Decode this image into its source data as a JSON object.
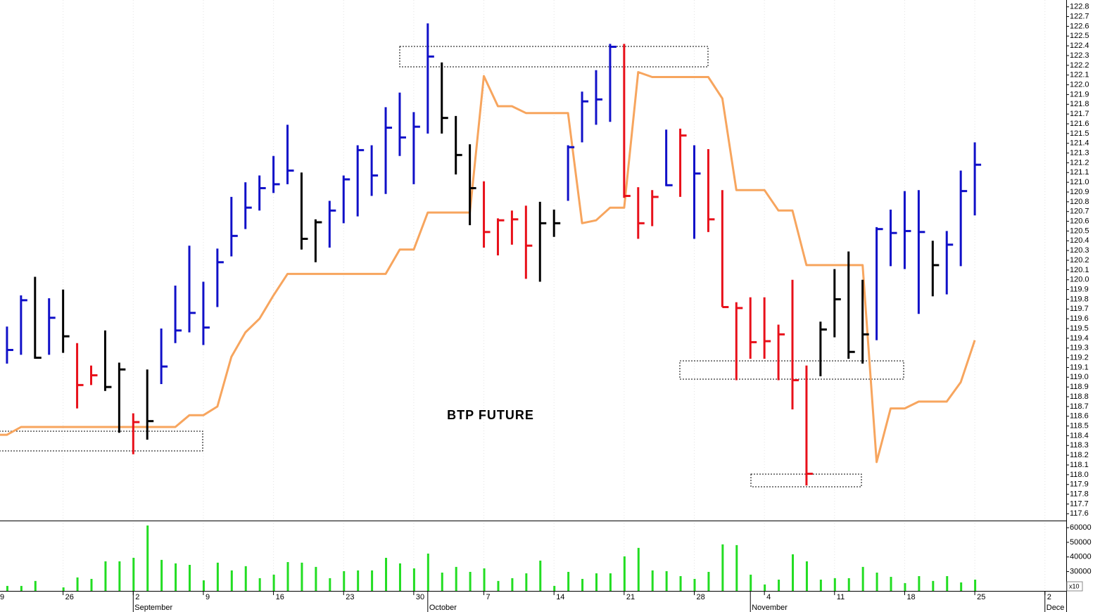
{
  "chart_data": {
    "type": "ohlc",
    "title": "BTP FUTURE",
    "categories": [
      "9",
      null,
      null,
      null,
      null,
      "26",
      null,
      null,
      null,
      null,
      "2",
      null,
      null,
      null,
      null,
      "9",
      null,
      null,
      null,
      null,
      "16",
      null,
      null,
      null,
      null,
      "23",
      null,
      null,
      null,
      null,
      "30",
      null,
      null,
      null,
      null,
      "7",
      null,
      null,
      null,
      null,
      "14",
      null,
      null,
      null,
      null,
      "21",
      null,
      null,
      null,
      null,
      "28",
      null,
      null,
      null,
      null,
      "4",
      null,
      null,
      null,
      null,
      "11",
      null,
      null,
      null,
      null,
      "18",
      null,
      null,
      null,
      null,
      "25",
      null,
      null,
      null,
      null,
      "2"
    ],
    "months": [
      null,
      null,
      null,
      null,
      null,
      null,
      null,
      null,
      null,
      null,
      "September",
      null,
      null,
      null,
      null,
      null,
      null,
      null,
      null,
      null,
      null,
      null,
      null,
      null,
      null,
      null,
      null,
      null,
      null,
      null,
      null,
      "October",
      null,
      null,
      null,
      null,
      null,
      null,
      null,
      null,
      null,
      null,
      null,
      null,
      null,
      null,
      null,
      null,
      null,
      null,
      null,
      null,
      null,
      null,
      "November",
      null,
      null,
      null,
      null,
      null,
      null,
      null,
      null,
      null,
      null,
      null,
      null,
      null,
      null,
      null,
      null,
      null,
      null,
      null,
      null,
      "Dece"
    ],
    "palette": {
      "up": "#1010c8",
      "down": "#e8101a",
      "neutral": "#000000"
    },
    "trend": [
      null,
      "up",
      "up",
      "neutral",
      "up",
      "neutral",
      "down",
      "down",
      "neutral",
      "neutral",
      "down",
      "neutral",
      "up",
      "up",
      "up",
      "up",
      "up",
      "up",
      "up",
      "up",
      "up",
      "up",
      "neutral",
      "neutral",
      "up",
      "up",
      "up",
      "up",
      "up",
      "up",
      "up",
      "up",
      "neutral",
      "neutral",
      "neutral",
      "down",
      "down",
      "down",
      "down",
      "neutral",
      "neutral",
      "up",
      "up",
      "up",
      "up",
      "down",
      "down",
      "down",
      "up",
      "down",
      "up",
      "down",
      "down",
      "down",
      "down",
      "down",
      "down",
      "down",
      "down",
      "neutral",
      "neutral",
      "neutral",
      "neutral",
      "up",
      "up",
      "up",
      "up",
      "neutral",
      "up",
      "up",
      "up",
      null,
      null,
      null,
      null,
      null
    ],
    "high": [
      null,
      119.52,
      119.84,
      120.03,
      119.81,
      119.9,
      119.35,
      119.12,
      119.48,
      119.15,
      118.63,
      119.08,
      119.5,
      119.94,
      120.35,
      119.98,
      120.32,
      120.85,
      121.0,
      121.07,
      121.27,
      121.59,
      121.1,
      120.62,
      120.81,
      121.07,
      121.38,
      121.38,
      121.77,
      121.92,
      121.72,
      122.63,
      122.23,
      121.68,
      121.39,
      121.01,
      120.63,
      120.71,
      120.76,
      120.8,
      120.72,
      121.38,
      121.93,
      122.15,
      122.42,
      122.42,
      120.95,
      120.92,
      121.54,
      121.55,
      121.38,
      121.34,
      120.92,
      119.77,
      119.82,
      119.82,
      119.54,
      120.0,
      119.12,
      119.57,
      120.11,
      120.29,
      120.0,
      120.54,
      120.72,
      120.91,
      120.92,
      120.4,
      120.5,
      121.12,
      121.41,
      null,
      null,
      null,
      null,
      null
    ],
    "low": [
      null,
      119.14,
      119.23,
      119.19,
      119.23,
      119.25,
      118.68,
      118.92,
      118.86,
      118.43,
      118.21,
      118.36,
      118.93,
      119.35,
      119.46,
      119.33,
      119.72,
      120.24,
      120.52,
      120.71,
      120.89,
      120.98,
      120.31,
      120.18,
      120.33,
      120.58,
      120.65,
      120.86,
      120.88,
      121.27,
      120.98,
      121.5,
      121.5,
      121.08,
      120.56,
      120.33,
      120.25,
      120.36,
      120.01,
      119.98,
      120.44,
      120.81,
      121.41,
      121.59,
      121.62,
      120.84,
      120.42,
      120.55,
      120.96,
      120.85,
      120.42,
      120.49,
      119.72,
      118.97,
      119.19,
      119.19,
      118.97,
      118.67,
      117.89,
      119.01,
      119.41,
      119.19,
      119.14,
      119.38,
      120.14,
      120.11,
      119.65,
      119.83,
      119.85,
      120.14,
      120.66,
      null,
      null,
      null,
      null,
      null
    ],
    "close": [
      null,
      119.28,
      119.79,
      119.2,
      119.61,
      119.42,
      118.92,
      119.02,
      118.9,
      119.08,
      118.54,
      118.55,
      119.11,
      119.48,
      119.66,
      119.51,
      120.18,
      120.45,
      120.74,
      120.94,
      120.98,
      121.12,
      120.42,
      120.59,
      120.71,
      121.03,
      121.33,
      121.07,
      121.56,
      121.46,
      121.57,
      122.29,
      121.66,
      121.28,
      120.94,
      120.49,
      120.61,
      120.62,
      120.35,
      120.58,
      120.58,
      121.36,
      121.83,
      121.85,
      122.39,
      120.86,
      120.58,
      120.85,
      120.97,
      121.48,
      121.09,
      120.62,
      119.72,
      119.71,
      119.36,
      119.37,
      119.44,
      118.97,
      118.01,
      119.49,
      119.8,
      119.26,
      119.44,
      120.52,
      120.48,
      120.5,
      120.49,
      120.15,
      120.36,
      120.91,
      121.18,
      null,
      null,
      null,
      null,
      null
    ],
    "line": {
      "color": "#f7a55e",
      "values": [
        118.41,
        118.41,
        118.49,
        118.49,
        118.49,
        118.49,
        118.49,
        118.49,
        118.49,
        118.49,
        118.49,
        118.49,
        118.49,
        118.49,
        118.61,
        118.61,
        118.7,
        119.21,
        119.46,
        119.6,
        119.84,
        120.06,
        120.06,
        120.06,
        120.06,
        120.06,
        120.06,
        120.06,
        120.06,
        120.31,
        120.31,
        120.69,
        120.69,
        120.69,
        120.69,
        122.09,
        121.78,
        121.78,
        121.71,
        121.71,
        121.71,
        121.71,
        120.58,
        120.61,
        120.74,
        120.74,
        122.13,
        122.08,
        122.08,
        122.08,
        122.08,
        122.08,
        121.86,
        120.92,
        120.92,
        120.92,
        120.71,
        120.71,
        120.15,
        120.15,
        120.15,
        120.15,
        120.15,
        118.13,
        118.68,
        118.68,
        118.75,
        118.75,
        118.75,
        118.95,
        119.38,
        null,
        null,
        null,
        null,
        null
      ]
    },
    "ylim": [
      117.53,
      122.87
    ],
    "yticks": [
      117.6,
      117.7,
      117.8,
      117.9,
      {
        "value": 118,
        "label": "118.0"
      },
      118.1,
      118.2,
      118.3,
      118.4,
      118.5,
      118.6,
      118.7,
      118.8,
      118.9,
      {
        "value": 119,
        "label": "119.0"
      },
      119.1,
      119.2,
      119.3,
      119.4,
      119.5,
      119.6,
      119.7,
      119.8,
      119.9,
      {
        "value": 120,
        "label": "120.0"
      },
      120.1,
      120.2,
      120.3,
      120.4,
      120.5,
      120.6,
      120.7,
      120.8,
      120.9,
      {
        "value": 121,
        "label": "121.0"
      },
      121.1,
      121.2,
      121.3,
      121.4,
      121.5,
      121.6,
      121.7,
      121.8,
      121.9,
      {
        "value": 122,
        "label": "122.0"
      },
      122.1,
      122.2,
      122.3,
      122.4,
      122.5,
      122.6,
      122.7,
      122.8
    ],
    "volume": {
      "color": "#22dd22",
      "scale_label": "x10",
      "values": [
        null,
        20200,
        20200,
        23600,
        16800,
        19200,
        26000,
        25000,
        37000,
        37000,
        39400,
        61500,
        38000,
        35600,
        34600,
        24000,
        36100,
        30800,
        33700,
        25500,
        27900,
        36500,
        36100,
        33200,
        25500,
        30300,
        30800,
        30800,
        39400,
        35600,
        32200,
        42300,
        29300,
        33200,
        29800,
        32200,
        23600,
        25500,
        28800,
        37500,
        20200,
        29800,
        25000,
        28800,
        28800,
        40400,
        46200,
        30800,
        30300,
        26900,
        25000,
        29800,
        48600,
        48100,
        27900,
        21200,
        24500,
        41800,
        37000,
        24500,
        25500,
        25500,
        33200,
        29300,
        26400,
        22100,
        26900,
        23600,
        26900,
        22600,
        24500,
        null,
        null,
        null,
        null,
        null
      ],
      "ylim": [
        16800,
        64400
      ],
      "yticks": [
        30000,
        40000,
        50000,
        60000
      ]
    }
  }
}
